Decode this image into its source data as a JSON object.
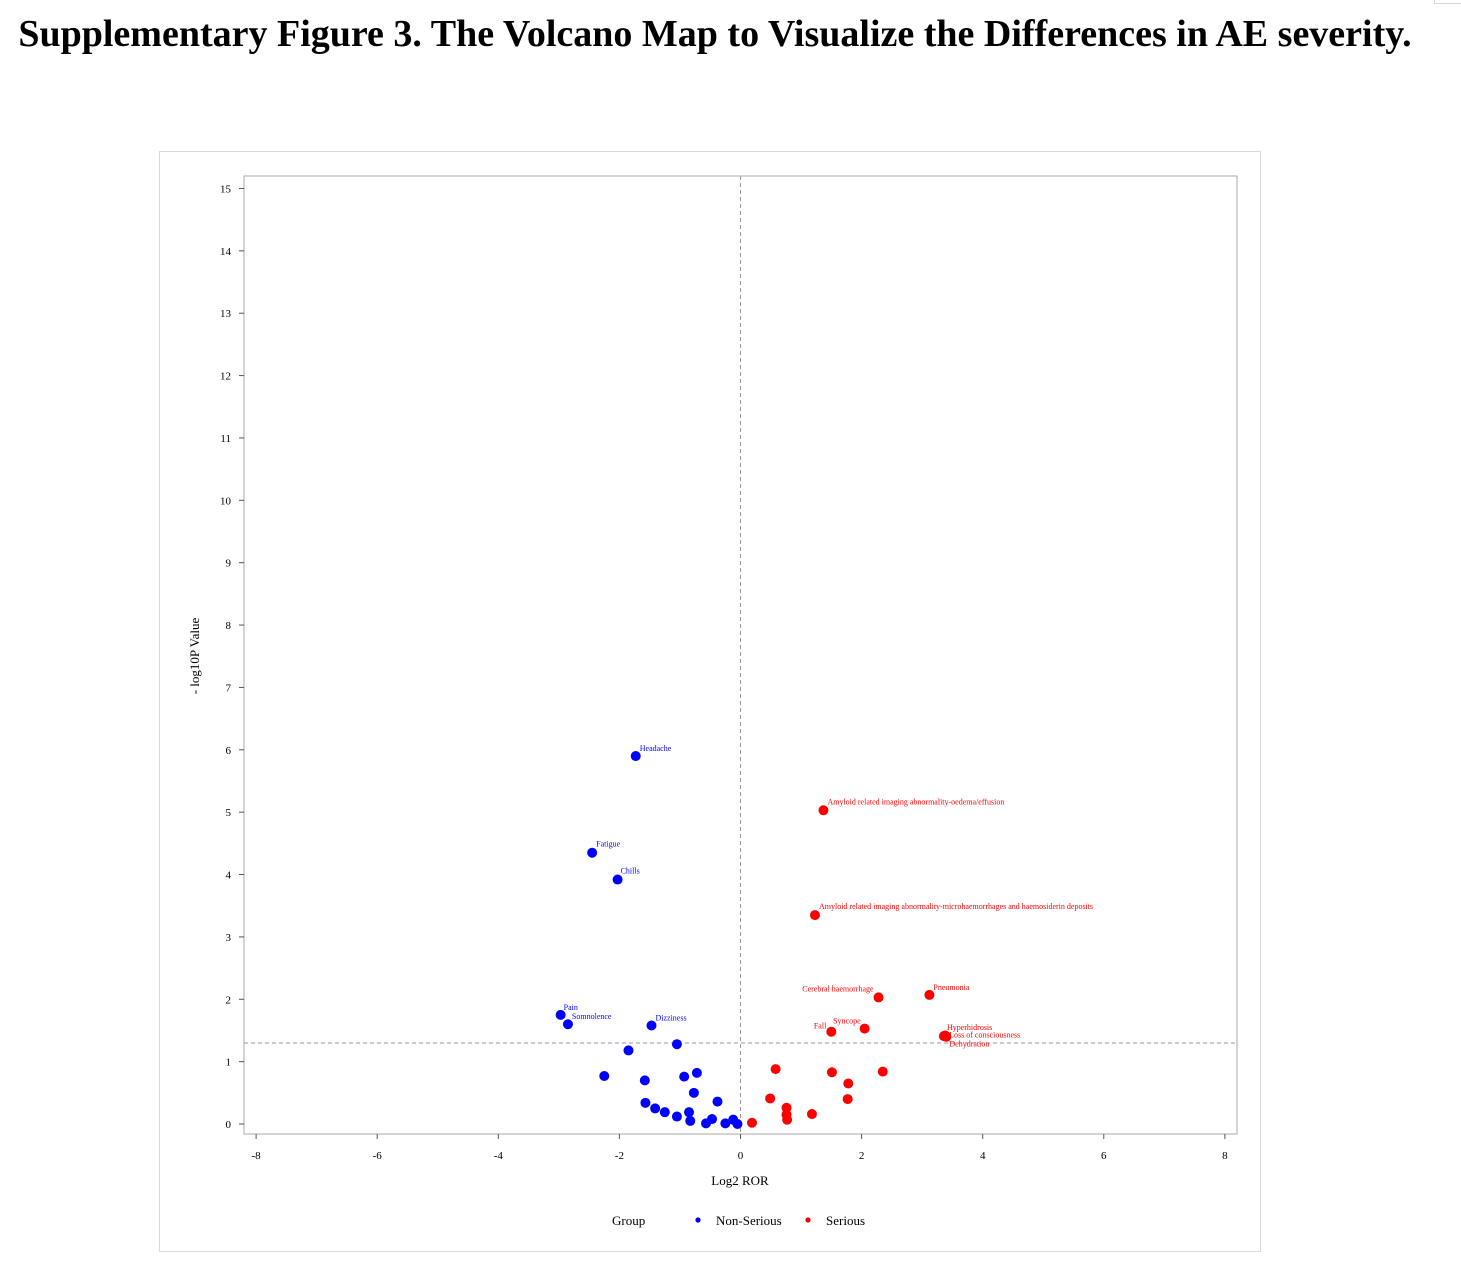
{
  "figure_title": "Supplementary Figure 3. The Volcano Map to Visualize the Differences in AE severity.",
  "chart_data": {
    "type": "scatter",
    "title": "",
    "xlabel": "Log2 ROR",
    "ylabel": "- log10P Value",
    "xlim": [
      -8.2,
      8.2
    ],
    "ylim": [
      -0.16,
      15.2
    ],
    "xticks": [
      -8,
      -6,
      -4,
      -2,
      0,
      2,
      4,
      6,
      8
    ],
    "yticks": [
      0,
      1,
      2,
      3,
      4,
      5,
      6,
      7,
      8,
      9,
      10,
      11,
      12,
      13,
      14,
      15
    ],
    "reference_lines": {
      "x": 0,
      "y": 1.3
    },
    "grid": false,
    "legend": {
      "title": "Group",
      "position": "bottom",
      "entries": [
        {
          "name": "Non-Serious",
          "color": "#0000ff"
        },
        {
          "name": "Serious",
          "color": "#ff0000"
        }
      ]
    },
    "series": [
      {
        "name": "Non-Serious",
        "color": "#0000ff",
        "points": [
          {
            "x": -1.73,
            "y": 5.9,
            "label": "Headache"
          },
          {
            "x": -2.45,
            "y": 4.35,
            "label": "Fatigue"
          },
          {
            "x": -2.03,
            "y": 3.92,
            "label": "Chills"
          },
          {
            "x": -2.97,
            "y": 1.75,
            "label": "Pain"
          },
          {
            "x": -2.85,
            "y": 1.6,
            "label": "Somnolence"
          },
          {
            "x": -1.47,
            "y": 1.58,
            "label": "Dizziness"
          },
          {
            "x": -1.05,
            "y": 1.28
          },
          {
            "x": -1.85,
            "y": 1.18
          },
          {
            "x": -2.25,
            "y": 0.77
          },
          {
            "x": -1.58,
            "y": 0.7
          },
          {
            "x": -0.93,
            "y": 0.76
          },
          {
            "x": -0.72,
            "y": 0.82
          },
          {
            "x": -0.77,
            "y": 0.5
          },
          {
            "x": -0.38,
            "y": 0.36
          },
          {
            "x": -1.57,
            "y": 0.34
          },
          {
            "x": -1.41,
            "y": 0.25
          },
          {
            "x": -1.25,
            "y": 0.19
          },
          {
            "x": -1.05,
            "y": 0.12
          },
          {
            "x": -0.85,
            "y": 0.19
          },
          {
            "x": -0.83,
            "y": 0.05
          },
          {
            "x": -0.47,
            "y": 0.08
          },
          {
            "x": -0.57,
            "y": 0.01
          },
          {
            "x": -0.25,
            "y": 0.01
          },
          {
            "x": -0.12,
            "y": 0.07
          },
          {
            "x": -0.05,
            "y": 0.0
          }
        ]
      },
      {
        "name": "Serious",
        "color": "#ff0000",
        "points": [
          {
            "x": 1.37,
            "y": 5.03,
            "label": "Amyloid related imaging abnormality-oedema/effusion"
          },
          {
            "x": 1.23,
            "y": 3.35,
            "label": "Amyloid related imaging abnormality-microhaemorrhages and haemosiderin deposits"
          },
          {
            "x": 2.28,
            "y": 2.03,
            "label": "Cerebral haemorrhage"
          },
          {
            "x": 3.12,
            "y": 2.07,
            "label": "Pneumonia"
          },
          {
            "x": 1.5,
            "y": 1.48,
            "label": "Fall"
          },
          {
            "x": 2.05,
            "y": 1.53,
            "label": "Syncope"
          },
          {
            "x": 3.36,
            "y": 1.41,
            "label": "Hyperhidrosis"
          },
          {
            "x": 3.38,
            "y": 1.42,
            "label": "Loss of consciousness"
          },
          {
            "x": 3.4,
            "y": 1.4,
            "label": "Dehydration"
          },
          {
            "x": 0.58,
            "y": 0.88
          },
          {
            "x": 1.51,
            "y": 0.83
          },
          {
            "x": 2.35,
            "y": 0.84
          },
          {
            "x": 1.78,
            "y": 0.65
          },
          {
            "x": 0.49,
            "y": 0.41
          },
          {
            "x": 1.77,
            "y": 0.4
          },
          {
            "x": 0.76,
            "y": 0.26
          },
          {
            "x": 0.76,
            "y": 0.15
          },
          {
            "x": 0.77,
            "y": 0.07
          },
          {
            "x": 1.18,
            "y": 0.16
          },
          {
            "x": 0.19,
            "y": 0.02
          }
        ]
      }
    ]
  }
}
